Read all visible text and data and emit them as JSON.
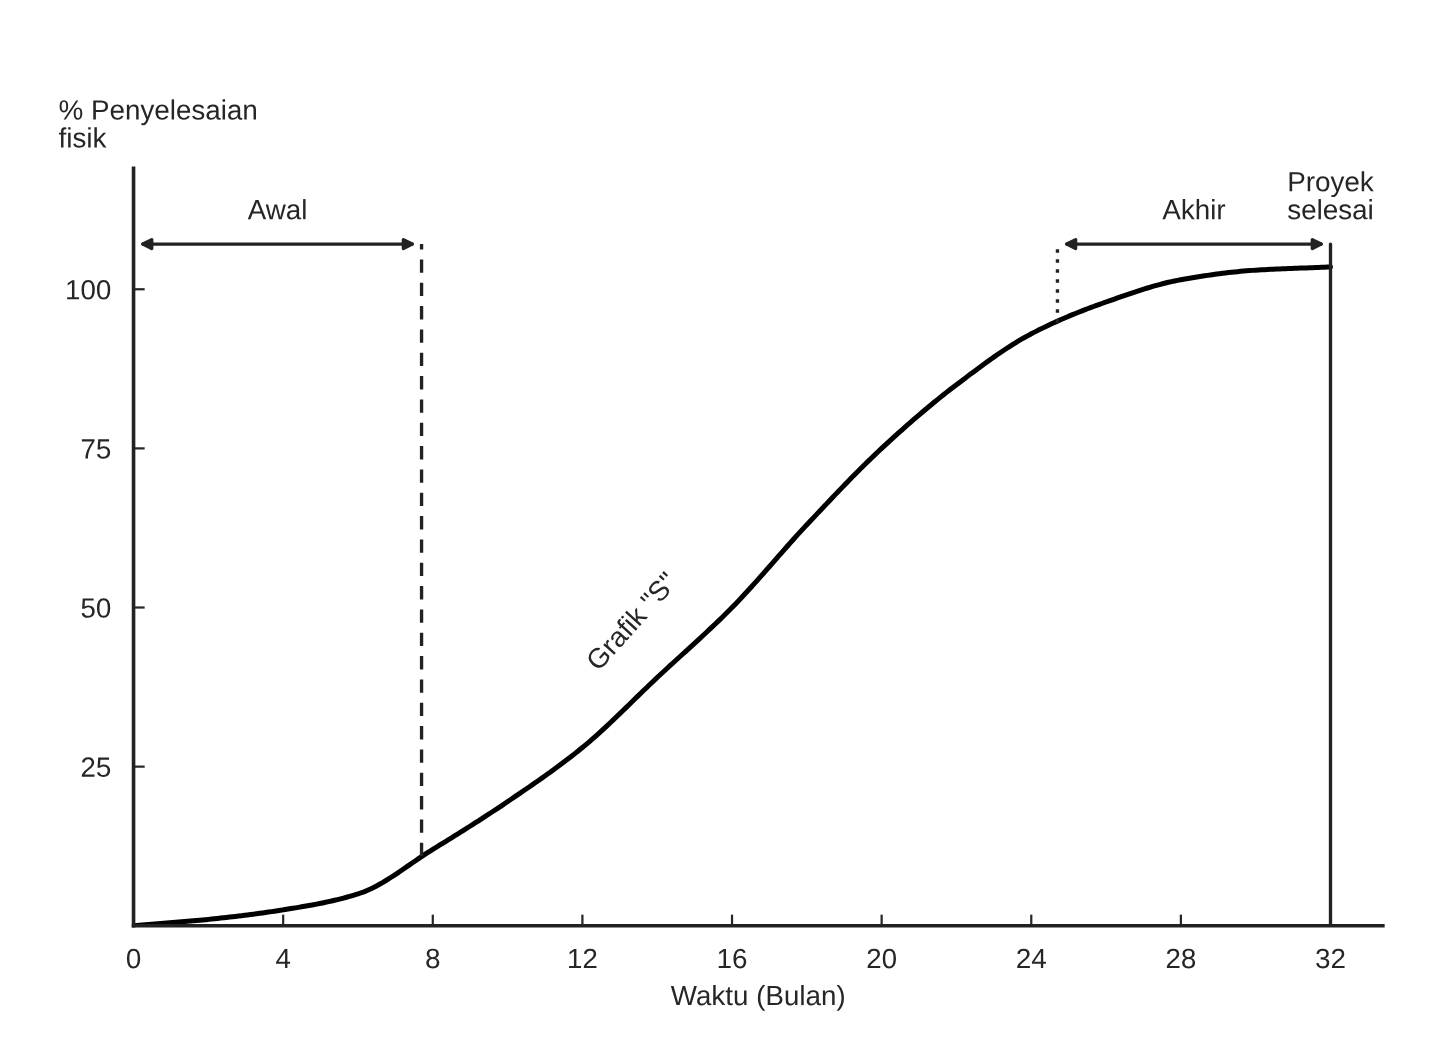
{
  "chart_data": {
    "type": "line",
    "xlabel": "Waktu (Bulan)",
    "ylabel": "% Penyelesaian\nfisik",
    "x": [
      0,
      2,
      4,
      6,
      8,
      10,
      12,
      14,
      16,
      18,
      20,
      22,
      24,
      26,
      28,
      30,
      32
    ],
    "series": [
      {
        "color": "#000000",
        "values": [
          0,
          1,
          2.5,
          5,
          12,
          19.5,
          28,
          39,
          50,
          63,
          75,
          85,
          93,
          98,
          101.5,
          103,
          103.5
        ]
      }
    ],
    "xlim": [
      0,
      33.4
    ],
    "ylim": [
      0,
      119
    ],
    "xticks": [
      0,
      4,
      8,
      12,
      16,
      20,
      24,
      28,
      32
    ],
    "yticks": [
      25,
      50,
      75,
      100
    ],
    "grid": false,
    "marker": "none",
    "line_style": "solid",
    "ref_lines": [
      {
        "axis": "x",
        "value": 7.7,
        "label": null,
        "line_style": "dashed"
      },
      {
        "axis": "x",
        "value": 24.7,
        "label": null,
        "line_style": "dotted"
      },
      {
        "axis": "x",
        "value": 32,
        "label": "Proyek\nselesai",
        "line_style": "solid"
      }
    ],
    "annotations": [
      "Awal",
      "Akhir",
      "Grafik \"S\""
    ]
  }
}
